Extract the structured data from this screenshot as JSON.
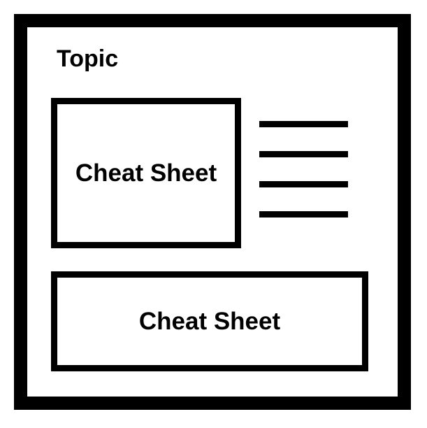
{
  "topic": {
    "title": "Topic"
  },
  "sheets": [
    {
      "label": "Cheat Sheet"
    },
    {
      "label": "Cheat Sheet"
    }
  ],
  "text_lines_count": 4,
  "colors": {
    "stroke": "#000000",
    "background": "#ffffff"
  }
}
